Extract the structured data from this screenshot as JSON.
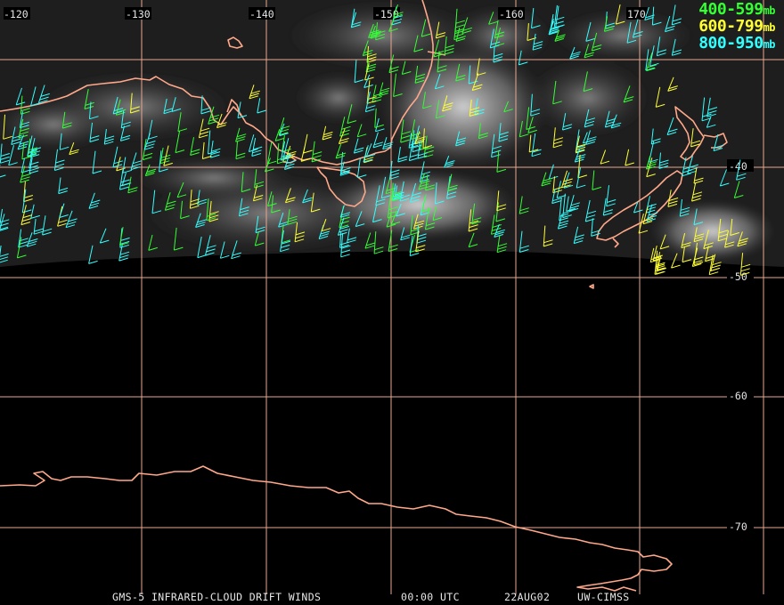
{
  "title": {
    "product": "GMS-5 INFRARED-CLOUD DRIFT WINDS",
    "time": "00:00 UTC",
    "date": "22AUG02",
    "source": "UW-CIMSS"
  },
  "legend": [
    {
      "range": "400-599",
      "unit": "mb",
      "color": "#33ff33"
    },
    {
      "range": "600-799",
      "unit": "mb",
      "color": "#ffff33"
    },
    {
      "range": "800-950",
      "unit": "mb",
      "color": "#33ffff"
    }
  ],
  "colors": {
    "grid": "#e8a890",
    "coast": "#ffa88a",
    "background": "#000000"
  },
  "grid": {
    "longitude_labels": [
      "-120",
      "-130",
      "-140",
      "-150",
      "-160",
      "170"
    ],
    "latitude_labels": [
      "-40",
      "-50",
      "-60",
      "-70"
    ]
  }
}
